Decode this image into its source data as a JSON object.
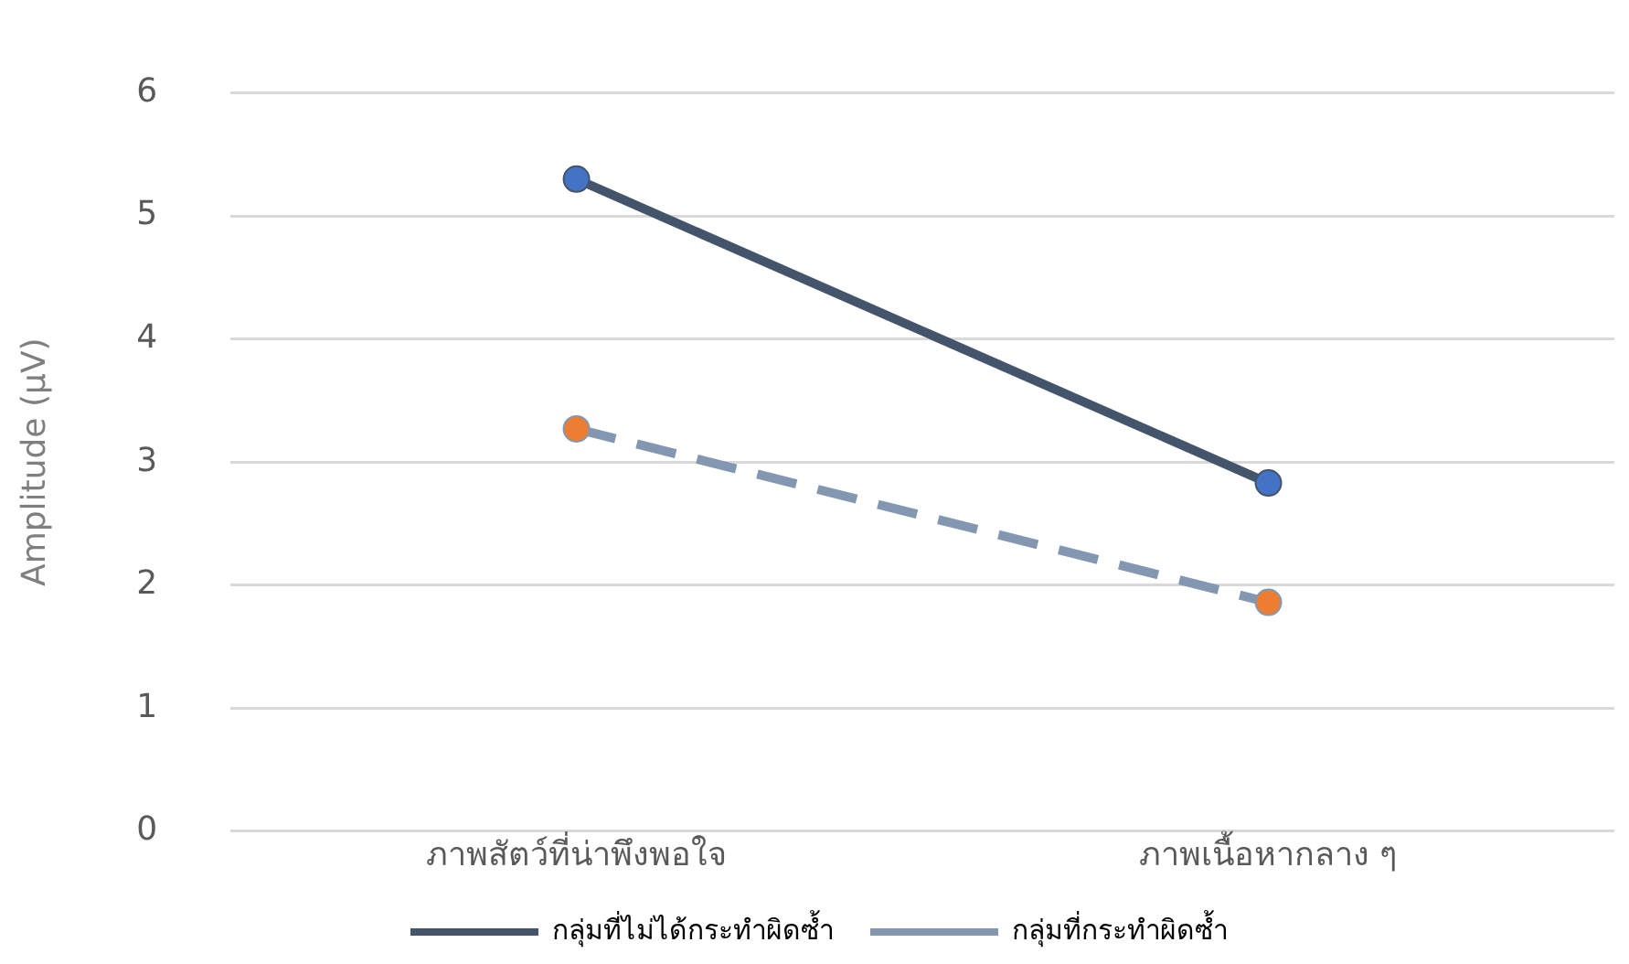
{
  "chart_data": {
    "type": "line",
    "ylabel": "Amplitude (µV)",
    "categories": [
      "ภาพสัตว์ที่น่าพึงพอใจ",
      "ภาพเนื้อหากลาง ๆ"
    ],
    "series": [
      {
        "name": "กลุ่มที่ไม่ได้กระทำผิดซ้ำ",
        "color": "#44546a",
        "colors": [
          "#4472c4",
          "#4472c4"
        ],
        "line_style": "solid",
        "values": [
          5.3,
          2.83
        ]
      },
      {
        "name": "กลุ่มที่กระทำผิดซ้ำ",
        "color": "#8497b0",
        "colors": [
          "#ed7d31",
          "#ed7d31"
        ],
        "line_style": "dashed",
        "values": [
          3.27,
          1.86
        ]
      }
    ],
    "ylim": [
      0,
      6
    ],
    "yticks": [
      0,
      1,
      2,
      3,
      4,
      5,
      6
    ],
    "grid": "y",
    "legend": "bottom",
    "marker": "circle"
  }
}
